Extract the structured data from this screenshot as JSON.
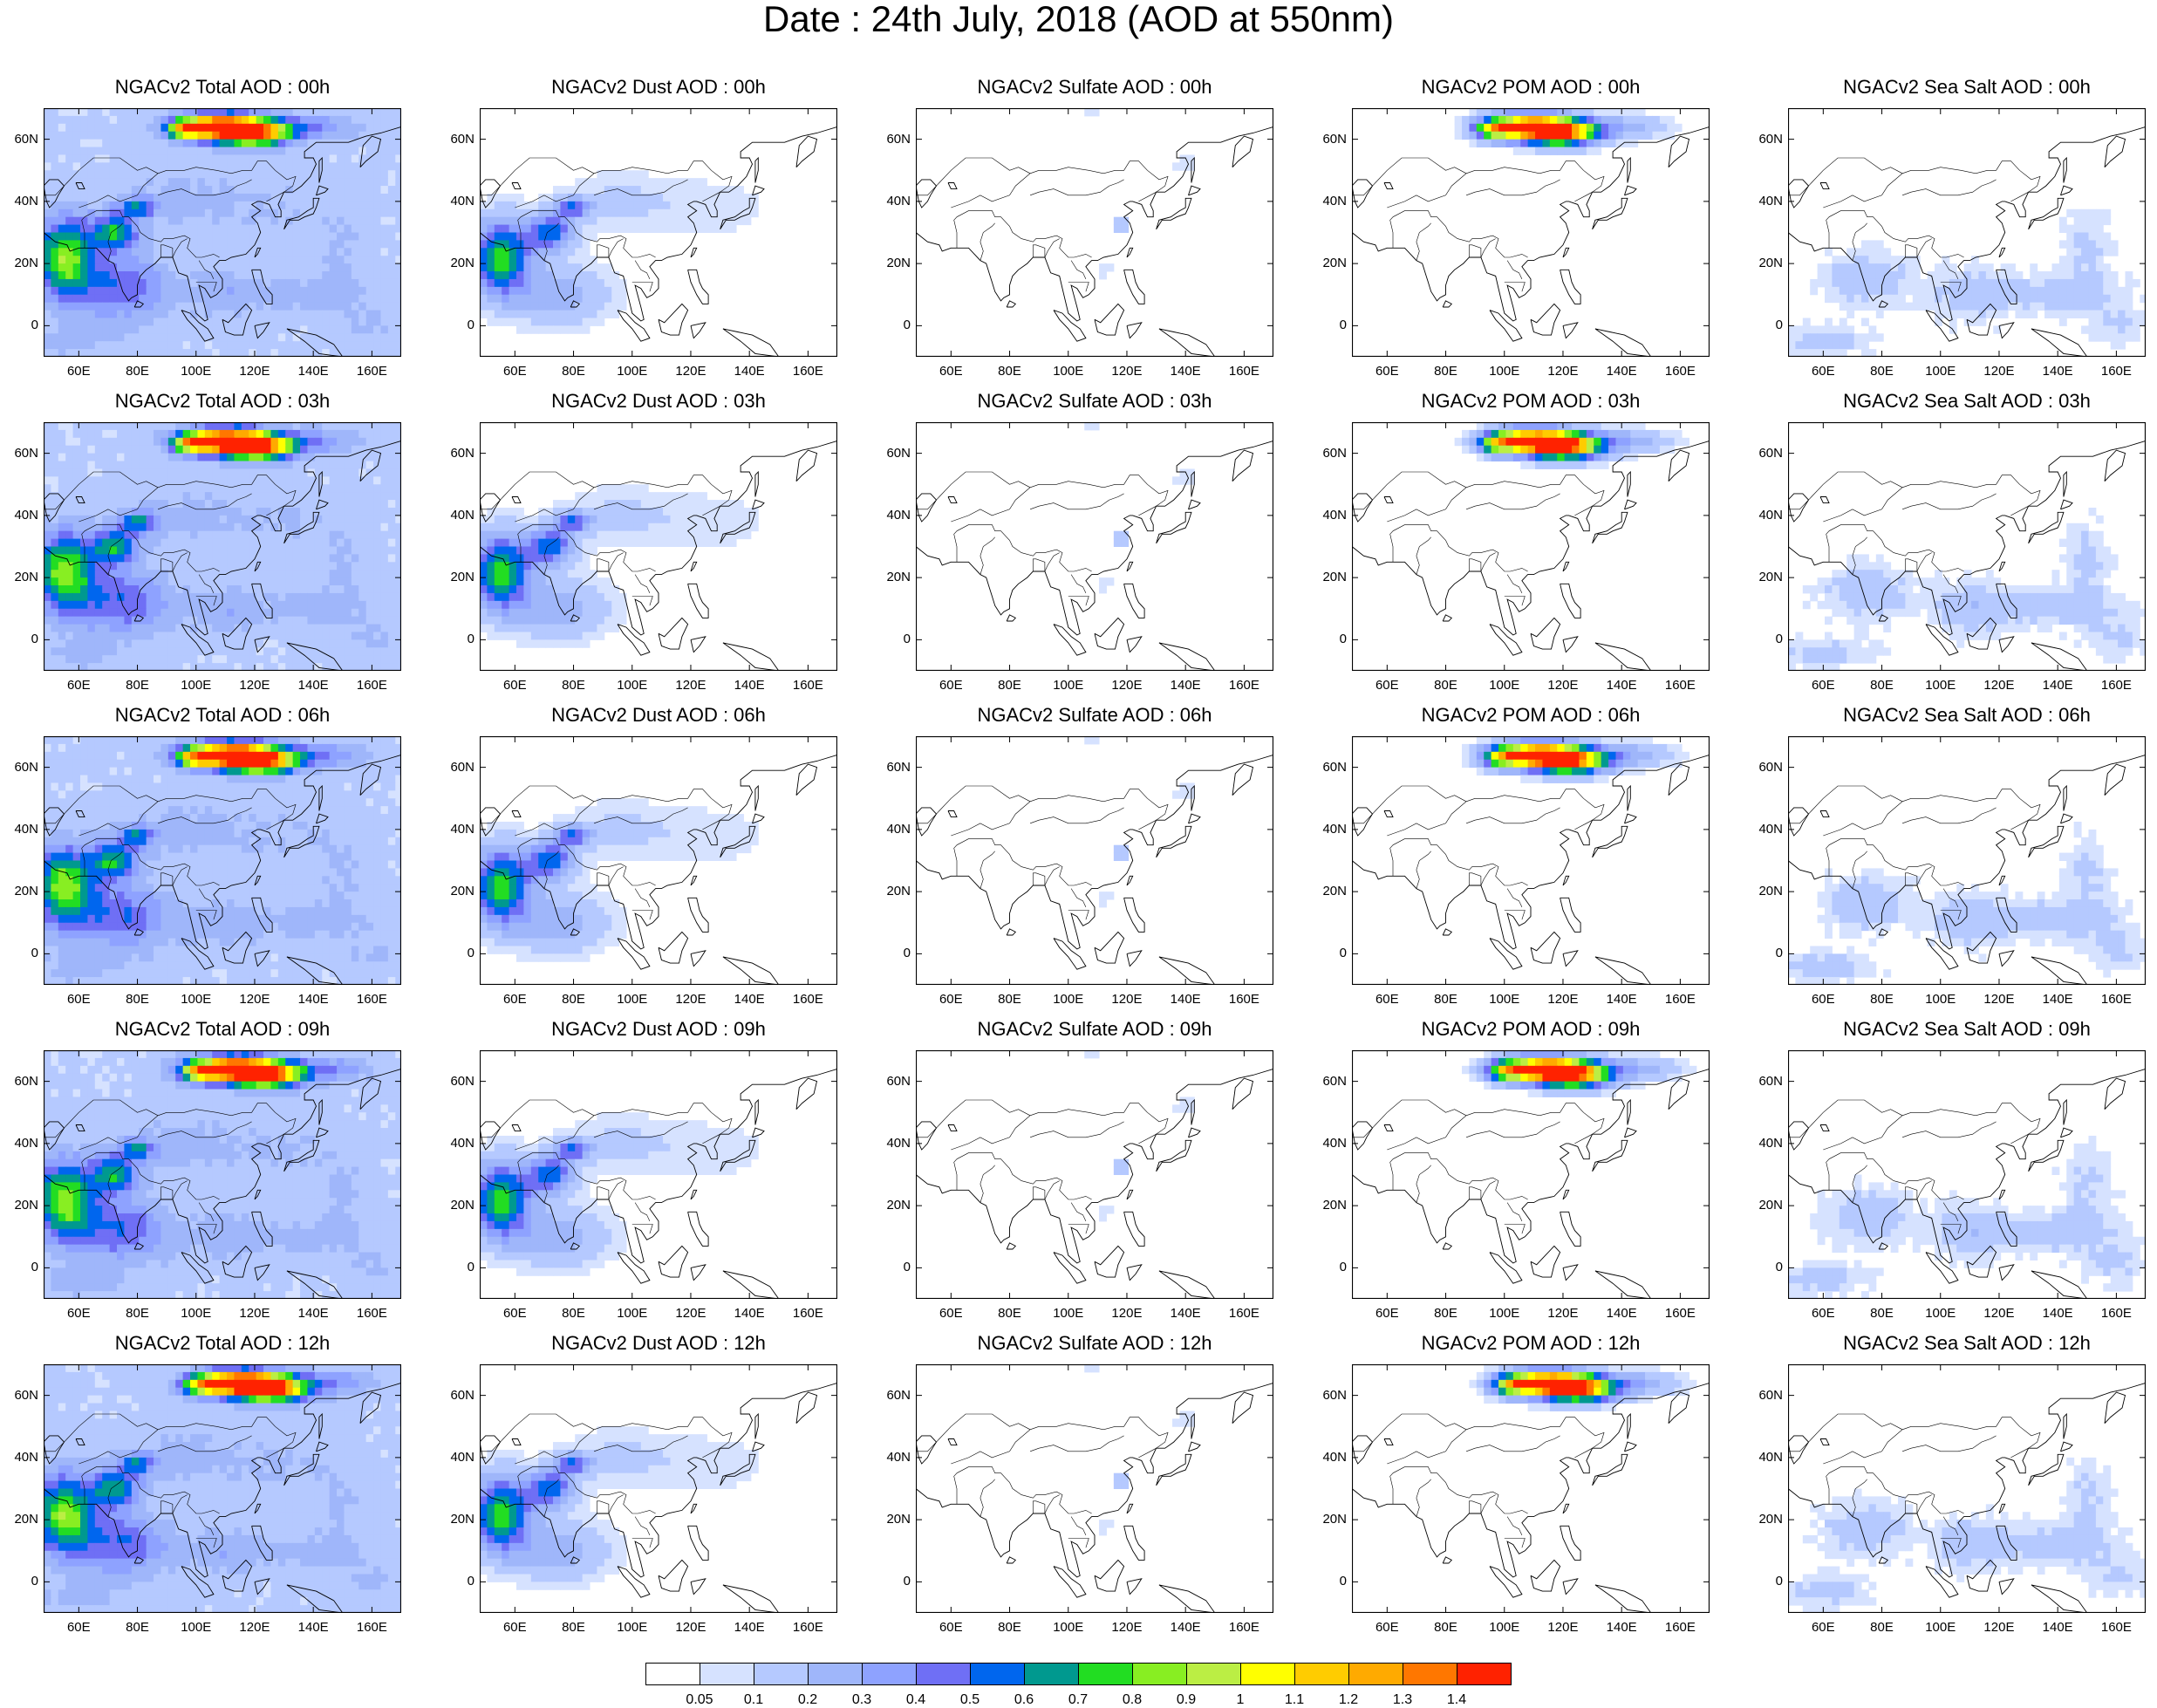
{
  "title": "Date : 24th July, 2018 (AOD at 550nm)",
  "axes": {
    "x_ticks": [
      "60E",
      "80E",
      "100E",
      "120E",
      "140E",
      "160E"
    ],
    "y_ticks": [
      "60N",
      "40N",
      "20N",
      "0"
    ],
    "lon_range": [
      48,
      170
    ],
    "lat_range": [
      -10,
      70
    ]
  },
  "panels": [
    [
      {
        "title": "NGACv2 Total AOD : 00h",
        "type": "total"
      },
      {
        "title": "NGACv2 Dust AOD : 00h",
        "type": "dust"
      },
      {
        "title": "NGACv2 Sulfate AOD : 00h",
        "type": "sulfate"
      },
      {
        "title": "NGACv2 POM AOD : 00h",
        "type": "pom"
      },
      {
        "title": "NGACv2 Sea Salt AOD : 00h",
        "type": "seasalt"
      }
    ],
    [
      {
        "title": "NGACv2 Total AOD : 03h",
        "type": "total"
      },
      {
        "title": "NGACv2 Dust AOD : 03h",
        "type": "dust"
      },
      {
        "title": "NGACv2 Sulfate AOD : 03h",
        "type": "sulfate"
      },
      {
        "title": "NGACv2 POM AOD : 03h",
        "type": "pom"
      },
      {
        "title": "NGACv2 Sea Salt AOD : 03h",
        "type": "seasalt"
      }
    ],
    [
      {
        "title": "NGACv2 Total AOD : 06h",
        "type": "total"
      },
      {
        "title": "NGACv2 Dust AOD : 06h",
        "type": "dust"
      },
      {
        "title": "NGACv2 Sulfate AOD : 06h",
        "type": "sulfate"
      },
      {
        "title": "NGACv2 POM AOD : 06h",
        "type": "pom"
      },
      {
        "title": "NGACv2 Sea Salt AOD : 06h",
        "type": "seasalt"
      }
    ],
    [
      {
        "title": "NGACv2 Total AOD : 09h",
        "type": "total"
      },
      {
        "title": "NGACv2 Dust AOD : 09h",
        "type": "dust"
      },
      {
        "title": "NGACv2 Sulfate AOD : 09h",
        "type": "sulfate"
      },
      {
        "title": "NGACv2 POM AOD : 09h",
        "type": "pom"
      },
      {
        "title": "NGACv2 Sea Salt  AOD : 09h",
        "type": "seasalt"
      }
    ],
    [
      {
        "title": "NGACv2 Total AOD  : 12h",
        "type": "total"
      },
      {
        "title": "NGACv2 Dust AOD : 12h",
        "type": "dust"
      },
      {
        "title": "NGACv2 Sulfate AOD : 12h",
        "type": "sulfate"
      },
      {
        "title": "NGACv2 POM  AOD : 12h",
        "type": "pom"
      },
      {
        "title": "NGACv2 Sea Salt  AOD : 12h",
        "type": "seasalt"
      }
    ]
  ],
  "colorbar": {
    "labels": [
      "0.05",
      "0.1",
      "0.2",
      "0.3",
      "0.4",
      "0.5",
      "0.6",
      "0.7",
      "0.8",
      "0.9",
      "1",
      "1.1",
      "1.2",
      "1.3",
      "1.4"
    ],
    "colors": [
      "#ffffff",
      "#d6e2ff",
      "#b5c9ff",
      "#9fb6fa",
      "#8ea2ff",
      "#6f6ff5",
      "#0066ee",
      "#00998f",
      "#22dd22",
      "#88ee22",
      "#bbee44",
      "#ffff00",
      "#ffcc00",
      "#ffaa00",
      "#ff7700",
      "#ff2200"
    ]
  }
}
